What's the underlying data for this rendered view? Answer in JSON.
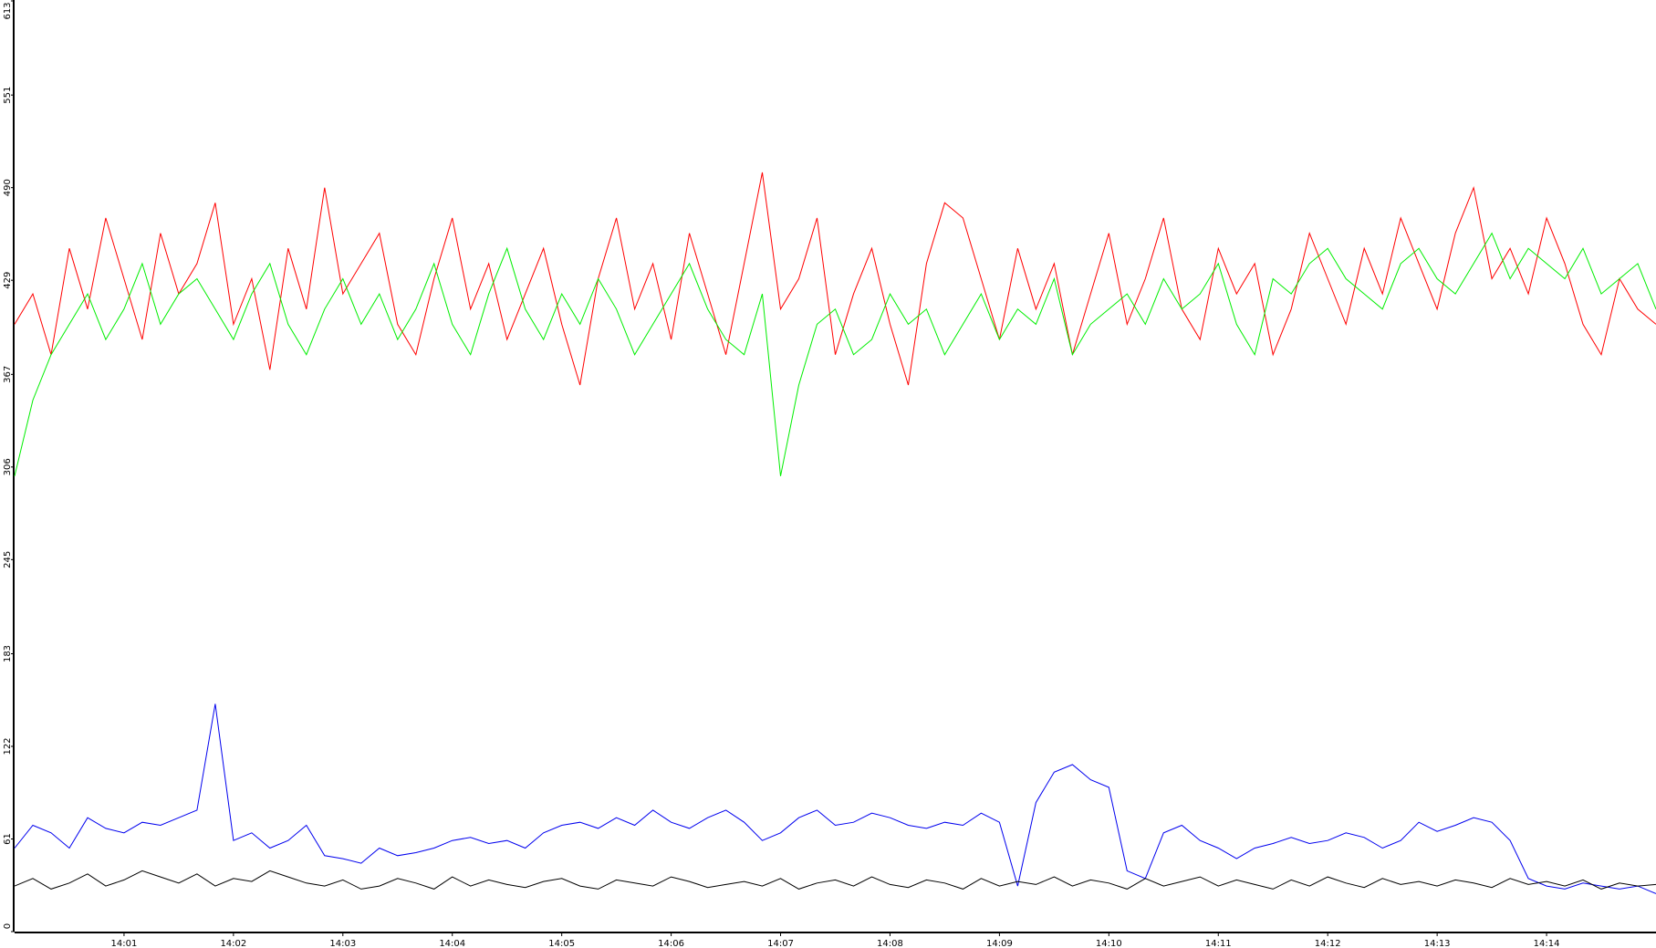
{
  "chart_data": {
    "type": "line",
    "categories": [
      null,
      null,
      null,
      null,
      null,
      null,
      "14:01",
      null,
      null,
      null,
      null,
      null,
      "14:02",
      null,
      null,
      null,
      null,
      null,
      "14:03",
      null,
      null,
      null,
      null,
      null,
      "14:04",
      null,
      null,
      null,
      null,
      null,
      "14:05",
      null,
      null,
      null,
      null,
      null,
      "14:06",
      null,
      null,
      null,
      null,
      null,
      "14:07",
      null,
      null,
      null,
      null,
      null,
      "14:08",
      null,
      null,
      null,
      null,
      null,
      "14:09",
      null,
      null,
      null,
      null,
      null,
      "14:10",
      null,
      null,
      null,
      null,
      null,
      "14:11",
      null,
      null,
      null,
      null,
      null,
      "14:12",
      null,
      null,
      null,
      null,
      null,
      "14:13",
      null,
      null,
      null,
      null,
      null,
      "14:14",
      null,
      null,
      null,
      null,
      null,
      null
    ],
    "ylim": [
      0,
      613
    ],
    "yticks": [
      0,
      61,
      122,
      183,
      245,
      306,
      367,
      429,
      490,
      551,
      613
    ],
    "series": [
      {
        "color": "#ff0000",
        "values": [
          400,
          420,
          380,
          450,
          410,
          470,
          430,
          390,
          460,
          420,
          440,
          480,
          400,
          430,
          370,
          450,
          410,
          490,
          420,
          440,
          460,
          400,
          380,
          430,
          470,
          410,
          440,
          390,
          420,
          450,
          400,
          360,
          430,
          470,
          410,
          440,
          390,
          460,
          420,
          380,
          440,
          500,
          410,
          430,
          470,
          380,
          420,
          450,
          400,
          360,
          440,
          480,
          470,
          430,
          390,
          450,
          410,
          440,
          380,
          420,
          460,
          400,
          430,
          470,
          410,
          390,
          450,
          420,
          440,
          380,
          410,
          460,
          430,
          400,
          450,
          420,
          470,
          440,
          410,
          460,
          490,
          430,
          450,
          420,
          470,
          440,
          400,
          380,
          430,
          410,
          400
        ]
      },
      {
        "color": "#00ee00",
        "values": [
          300,
          350,
          380,
          400,
          420,
          390,
          410,
          440,
          400,
          420,
          430,
          410,
          390,
          420,
          440,
          400,
          380,
          410,
          430,
          400,
          420,
          390,
          410,
          440,
          400,
          380,
          420,
          450,
          410,
          390,
          420,
          400,
          430,
          410,
          380,
          400,
          420,
          440,
          410,
          390,
          380,
          420,
          300,
          360,
          400,
          410,
          380,
          390,
          420,
          400,
          410,
          380,
          400,
          420,
          390,
          410,
          400,
          430,
          380,
          400,
          410,
          420,
          400,
          430,
          410,
          420,
          440,
          400,
          380,
          430,
          420,
          440,
          450,
          430,
          420,
          410,
          440,
          450,
          430,
          420,
          440,
          460,
          430,
          450,
          440,
          430,
          450,
          420,
          430,
          440,
          410
        ]
      },
      {
        "color": "#0000ee",
        "values": [
          55,
          70,
          65,
          55,
          75,
          68,
          65,
          72,
          70,
          75,
          80,
          150,
          60,
          65,
          55,
          60,
          70,
          50,
          48,
          45,
          55,
          50,
          52,
          55,
          60,
          62,
          58,
          60,
          55,
          65,
          70,
          72,
          68,
          75,
          70,
          80,
          72,
          68,
          75,
          80,
          72,
          60,
          65,
          75,
          80,
          70,
          72,
          78,
          75,
          70,
          68,
          72,
          70,
          78,
          72,
          30,
          85,
          105,
          110,
          100,
          95,
          40,
          35,
          65,
          70,
          60,
          55,
          48,
          55,
          58,
          62,
          58,
          60,
          65,
          62,
          55,
          60,
          72,
          66,
          70,
          75,
          72,
          60,
          35,
          30,
          28,
          32,
          30,
          28,
          30,
          25
        ]
      },
      {
        "color": "#000000",
        "values": [
          30,
          35,
          28,
          32,
          38,
          30,
          34,
          40,
          36,
          32,
          38,
          30,
          35,
          33,
          40,
          36,
          32,
          30,
          34,
          28,
          30,
          35,
          32,
          28,
          36,
          30,
          34,
          31,
          29,
          33,
          35,
          30,
          28,
          34,
          32,
          30,
          36,
          33,
          29,
          31,
          33,
          30,
          35,
          28,
          32,
          34,
          30,
          36,
          31,
          29,
          34,
          32,
          28,
          35,
          30,
          33,
          31,
          36,
          30,
          34,
          32,
          28,
          35,
          30,
          33,
          36,
          30,
          34,
          31,
          28,
          34,
          30,
          36,
          32,
          29,
          35,
          31,
          33,
          30,
          34,
          32,
          29,
          35,
          31,
          33,
          30,
          34,
          28,
          32,
          30,
          31
        ]
      }
    ]
  }
}
